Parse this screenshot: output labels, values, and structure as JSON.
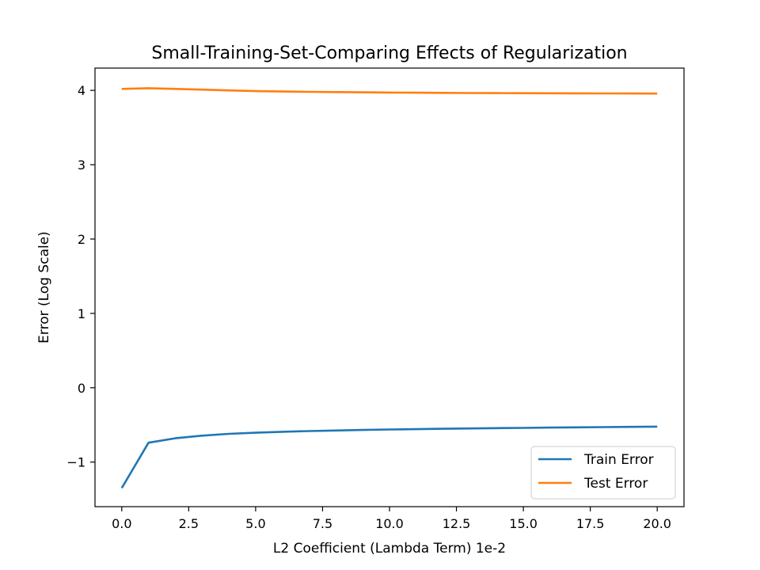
{
  "chart_data": {
    "type": "line",
    "title": "Small-Training-Set-Comparing Effects of Regularization",
    "xlabel": "L2 Coefficient (Lambda Term) 1e-2",
    "ylabel": "Error (Log Scale)",
    "xlim": [
      -1.0,
      21.0
    ],
    "ylim": [
      -1.6,
      4.3
    ],
    "x_ticks": [
      0.0,
      2.5,
      5.0,
      7.5,
      10.0,
      12.5,
      15.0,
      17.5,
      20.0
    ],
    "x_tick_labels": [
      "0.0",
      "2.5",
      "5.0",
      "7.5",
      "10.0",
      "12.5",
      "15.0",
      "17.5",
      "20.0"
    ],
    "y_ticks": [
      -1,
      0,
      1,
      2,
      3,
      4
    ],
    "y_tick_labels": [
      "−1",
      "0",
      "1",
      "2",
      "3",
      "4"
    ],
    "grid": false,
    "legend_position": "lower-right",
    "x": [
      0,
      1,
      2,
      3,
      4,
      5,
      6,
      7,
      8,
      9,
      10,
      11,
      12,
      13,
      14,
      15,
      16,
      17,
      18,
      19,
      20
    ],
    "series": [
      {
        "name": "Train Error",
        "color": "#1f77b4",
        "values": [
          -1.35,
          -0.74,
          -0.68,
          -0.645,
          -0.62,
          -0.605,
          -0.593,
          -0.583,
          -0.575,
          -0.568,
          -0.562,
          -0.557,
          -0.552,
          -0.548,
          -0.544,
          -0.54,
          -0.536,
          -0.533,
          -0.53,
          -0.527,
          -0.523
        ]
      },
      {
        "name": "Test Error",
        "color": "#ff7f0e",
        "values": [
          4.02,
          4.03,
          4.02,
          4.01,
          4.0,
          3.99,
          3.985,
          3.98,
          3.977,
          3.974,
          3.971,
          3.969,
          3.967,
          3.965,
          3.963,
          3.962,
          3.961,
          3.96,
          3.959,
          3.958,
          3.957
        ]
      }
    ]
  }
}
